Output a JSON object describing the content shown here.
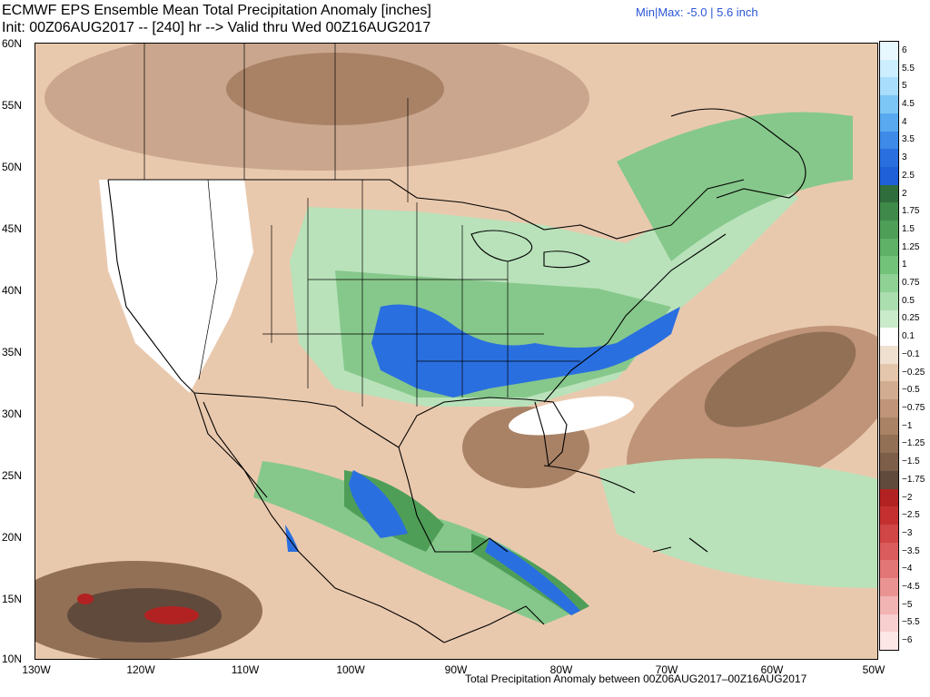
{
  "header": {
    "title_line1": "ECMWF EPS Ensemble Mean Total Precipitation Anomaly [inches]",
    "title_line2": "Init: 00Z06AUG2017 -- [240] hr --> Valid thru Wed 00Z16AUG2017",
    "minmax": "Min|Max: -5.0 | 5.6 inch"
  },
  "footer": "Total Precipitation Anomaly between 00Z06AUG2017–00Z16AUG2017",
  "axes": {
    "lat_labels": [
      "60N",
      "55N",
      "50N",
      "45N",
      "40N",
      "35N",
      "30N",
      "25N",
      "20N",
      "15N",
      "10N"
    ],
    "lon_labels": [
      "130W",
      "120W",
      "110W",
      "100W",
      "90W",
      "80W",
      "70W",
      "60W",
      "50W"
    ]
  },
  "colorbar": {
    "labels": [
      "6",
      "5.5",
      "5",
      "4.5",
      "4",
      "3.5",
      "3",
      "2.5",
      "2",
      "1.75",
      "1.5",
      "1.25",
      "1",
      "0.75",
      "0.5",
      "0.25",
      "0.1",
      "−0.1",
      "−0.25",
      "−0.5",
      "−0.75",
      "−1",
      "−1.25",
      "−1.5",
      "−1.75",
      "−2",
      "−2.5",
      "−3",
      "−3.5",
      "−4",
      "−4.5",
      "−5",
      "−5.5",
      "−6"
    ],
    "colors": [
      "#e8f8ff",
      "#cdeeff",
      "#a8ddfb",
      "#7cc6f5",
      "#58a9ef",
      "#3d8ae8",
      "#2a6fe0",
      "#1f5fd8",
      "#2f6d3c",
      "#3f8a4a",
      "#4f9e58",
      "#5fb167",
      "#73c27a",
      "#8fd194",
      "#abdeae",
      "#c9ebca",
      "#ffffff",
      "#efe0d0",
      "#e4c6ac",
      "#d2ac90",
      "#bf9478",
      "#a98266",
      "#927056",
      "#7c5e49",
      "#604a3c",
      "#b22222",
      "#c43030",
      "#d04545",
      "#da5c5c",
      "#e27676",
      "#ea9393",
      "#f2b3b3",
      "#f8cfcf",
      "#fde6e6"
    ]
  },
  "field_colors": {
    "ocean_dry": "#e9c9ae",
    "dry_dark": "#9a7a64",
    "wet_light": "#b9e2ba",
    "wet_mid": "#86c88b",
    "wet_dark": "#4f9e58",
    "heavy": "#2a6fe0",
    "extreme_dry": "#b22222",
    "neutral": "#ffffff",
    "coast": "#000000"
  }
}
